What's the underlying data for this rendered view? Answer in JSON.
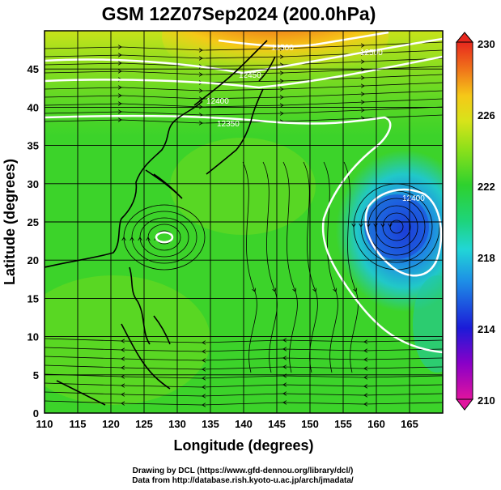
{
  "title": "GSM 12Z07Sep2024 (200.0hPa)",
  "xlabel": "Longitude (degrees)",
  "ylabel": "Latitude (degrees)",
  "x_ticks": [
    "110",
    "115",
    "120",
    "125",
    "130",
    "135",
    "140",
    "145",
    "150",
    "155",
    "160",
    "165"
  ],
  "y_ticks": [
    "0",
    "5",
    "10",
    "15",
    "20",
    "25",
    "30",
    "35",
    "40",
    "45"
  ],
  "colorbar": {
    "ticks": [
      "210",
      "214",
      "218",
      "222",
      "226",
      "230"
    ],
    "range": [
      210,
      230
    ],
    "colors": [
      "#e0139e",
      "#8a00c8",
      "#1b1bd8",
      "#1e8ee6",
      "#21d6d6",
      "#1ed47a",
      "#2ed12e",
      "#8de01a",
      "#d8e31a",
      "#f5c818",
      "#f0781a",
      "#e8281e"
    ]
  },
  "contour_labels": [
    "12500",
    "12450",
    "12400",
    "12350",
    "12400",
    "12500"
  ],
  "credits": {
    "line1": "Drawing by DCL (https://www.gfd-dennou.org/library/dcl/)",
    "line2": "Data from http://database.rish.kyoto-u.ac.jp/arch/jmadata/"
  },
  "chart_data": {
    "type": "heatmap",
    "title": "GSM 12Z07Sep2024 (200.0hPa)",
    "xlabel": "Longitude (degrees)",
    "ylabel": "Latitude (degrees)",
    "xlim": [
      110,
      170
    ],
    "ylim": [
      0,
      50
    ],
    "variable_range": [
      210,
      230
    ],
    "features": [
      {
        "kind": "cold core",
        "lon": 161,
        "lat": 27,
        "value": 216
      },
      {
        "kind": "warm region",
        "lon": 140,
        "lat": 49,
        "value": 229
      },
      {
        "kind": "small closed contour",
        "lon": 127,
        "lat": 25.5
      }
    ],
    "grid": true
  }
}
